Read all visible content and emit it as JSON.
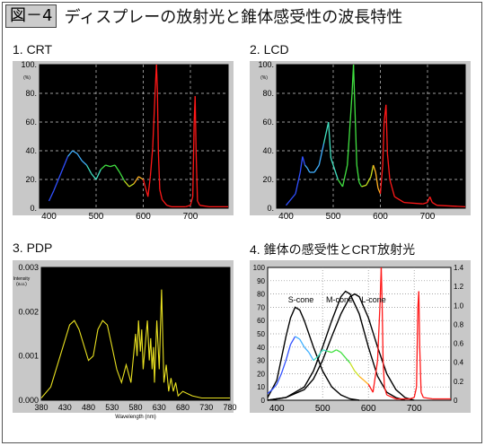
{
  "header": {
    "fig_label": "図－4",
    "title": "ディスプレーの放射光と錐体感受性の波長特性"
  },
  "colors": {
    "panel_bg": "#c8c8c8",
    "plot_bg": "#000000",
    "red": "#ff1010",
    "yellow": "#e8e020",
    "cone": "#000000"
  },
  "chart_data": [
    {
      "id": "crt",
      "panel_title": "1. CRT",
      "type": "line",
      "y_unit": "(%)",
      "x_ticks": [
        "400",
        "500",
        "600",
        "700"
      ],
      "y_ticks": [
        "100.",
        "80.",
        "60.",
        "40.",
        "20.",
        "0."
      ],
      "xlim": [
        380,
        780
      ],
      "ylim": [
        0,
        100
      ],
      "grid": "dashed",
      "series": [
        {
          "values_x": [
            400,
            410,
            420,
            430,
            440,
            450,
            460,
            470,
            480,
            490,
            500,
            510,
            520,
            530,
            540,
            550,
            560,
            570,
            580,
            590,
            600,
            610,
            615,
            620,
            625,
            628,
            630,
            632,
            635,
            640,
            650,
            660,
            690,
            700,
            705,
            708,
            710,
            712,
            715,
            720,
            740,
            780
          ],
          "values_y": [
            5,
            12,
            20,
            28,
            36,
            40,
            38,
            33,
            30,
            24,
            20,
            27,
            30,
            29,
            30,
            25,
            19,
            15,
            17,
            22,
            20,
            8,
            22,
            42,
            80,
            100,
            82,
            40,
            13,
            6,
            2,
            1,
            1,
            2,
            8,
            60,
            78,
            40,
            5,
            2,
            1,
            1
          ]
        }
      ]
    },
    {
      "id": "lcd",
      "panel_title": "2. LCD",
      "type": "line",
      "y_unit": "(%)",
      "x_ticks": [
        "400",
        "500",
        "600",
        "700"
      ],
      "y_ticks": [
        "100.",
        "80.",
        "60.",
        "40.",
        "20.",
        "0."
      ],
      "xlim": [
        380,
        780
      ],
      "ylim": [
        0,
        100
      ],
      "grid": "dashed",
      "series": [
        {
          "values_x": [
            400,
            420,
            430,
            435,
            440,
            445,
            450,
            460,
            470,
            480,
            490,
            495,
            500,
            510,
            520,
            530,
            540,
            543,
            546,
            550,
            555,
            560,
            570,
            580,
            585,
            590,
            595,
            600,
            605,
            608,
            612,
            615,
            620,
            630,
            650,
            690,
            700,
            705,
            710,
            720,
            780
          ],
          "values_y": [
            2,
            10,
            25,
            36,
            30,
            28,
            25,
            25,
            30,
            45,
            60,
            35,
            30,
            20,
            15,
            30,
            80,
            100,
            70,
            30,
            18,
            15,
            16,
            22,
            30,
            25,
            14,
            10,
            30,
            60,
            72,
            38,
            20,
            8,
            4,
            3,
            4,
            8,
            4,
            2,
            1
          ]
        }
      ]
    },
    {
      "id": "pdp",
      "panel_title": "3. PDP",
      "type": "line",
      "y_label": "Intensity",
      "y_unit": "(a.u.)",
      "x_label": "Wavelength (nm)",
      "x_ticks": [
        "380",
        "430",
        "480",
        "530",
        "580",
        "630",
        "680",
        "730",
        "780"
      ],
      "y_ticks": [
        "0.003",
        "0.002",
        "0.001",
        "0.000"
      ],
      "xlim": [
        380,
        780
      ],
      "ylim": [
        0,
        0.003
      ],
      "grid": "none",
      "series": [
        {
          "values_x": [
            380,
            400,
            420,
            440,
            450,
            460,
            480,
            490,
            500,
            510,
            520,
            530,
            540,
            550,
            560,
            570,
            580,
            583,
            586,
            590,
            593,
            596,
            600,
            605,
            609,
            612,
            615,
            618,
            620,
            625,
            630,
            635,
            638,
            640,
            645,
            650,
            655,
            660,
            665,
            670,
            680,
            700,
            720,
            780
          ],
          "values_y": [
            5e-05,
            0.0003,
            0.001,
            0.0017,
            0.0018,
            0.0016,
            0.0009,
            0.001,
            0.0016,
            0.0018,
            0.0017,
            0.0012,
            0.0007,
            0.0004,
            0.0008,
            0.0004,
            0.0015,
            0.001,
            0.0018,
            0.0011,
            0.0016,
            0.0007,
            0.0012,
            0.0018,
            0.0009,
            0.0014,
            0.0007,
            0.0012,
            0.0004,
            0.0018,
            0.0007,
            0.0025,
            0.0012,
            0.0004,
            0.0008,
            0.0002,
            0.0005,
            0.0002,
            0.0004,
            0.0001,
            0.0002,
            0.0001,
            5e-05,
            5e-05
          ]
        }
      ]
    },
    {
      "id": "cone",
      "panel_title": "4. 錐体の感受性とCRT放射光",
      "type": "line",
      "x_ticks": [
        "400",
        "500",
        "600",
        "700"
      ],
      "y_ticks": [
        "100",
        "90",
        "80",
        "70",
        "60",
        "50",
        "40",
        "30",
        "20",
        "10",
        "0"
      ],
      "y2_ticks": [
        "1.4",
        "1.2",
        "1.0",
        "0.8",
        "0.6",
        "0.4",
        "0.2",
        "0"
      ],
      "xlim": [
        380,
        780
      ],
      "ylim": [
        0,
        100
      ],
      "y2lim": [
        0,
        1.4
      ],
      "grid": "dotted",
      "annotations": [
        "S-cone",
        "M-cone",
        "L-cone"
      ],
      "series": [
        {
          "values_x": [
            380,
            400,
            420,
            430,
            440,
            450,
            460,
            480,
            500,
            520,
            540,
            560,
            580
          ],
          "values_y": [
            2,
            15,
            48,
            62,
            70,
            68,
            60,
            40,
            22,
            10,
            4,
            1,
            0
          ]
        },
        {
          "values_x": [
            380,
            420,
            460,
            480,
            500,
            520,
            540,
            550,
            560,
            580,
            600,
            620,
            640,
            660,
            680
          ],
          "values_y": [
            0,
            2,
            10,
            22,
            40,
            60,
            78,
            82,
            80,
            65,
            40,
            18,
            6,
            2,
            0
          ]
        },
        {
          "values_x": [
            380,
            420,
            460,
            480,
            500,
            520,
            540,
            560,
            570,
            580,
            600,
            620,
            640,
            660,
            680,
            700
          ],
          "values_y": [
            0,
            2,
            8,
            16,
            30,
            48,
            65,
            78,
            80,
            78,
            62,
            40,
            20,
            8,
            2,
            0
          ]
        },
        {
          "values_x": [
            380,
            390,
            400,
            410,
            420,
            430,
            440,
            450,
            460,
            470,
            480,
            490,
            500,
            510,
            520,
            530,
            540,
            550,
            560,
            570,
            580,
            590,
            600,
            610,
            620,
            625,
            628,
            630,
            632,
            635,
            640,
            660,
            690,
            700,
            705,
            708,
            710,
            712,
            715,
            720,
            740,
            780
          ],
          "values_y": [
            5,
            8,
            12,
            20,
            30,
            42,
            48,
            46,
            40,
            36,
            30,
            33,
            38,
            37,
            36,
            38,
            36,
            32,
            28,
            22,
            18,
            15,
            12,
            6,
            30,
            70,
            100,
            72,
            30,
            10,
            4,
            1,
            1,
            2,
            10,
            70,
            82,
            40,
            6,
            2,
            1,
            1
          ]
        }
      ]
    }
  ]
}
